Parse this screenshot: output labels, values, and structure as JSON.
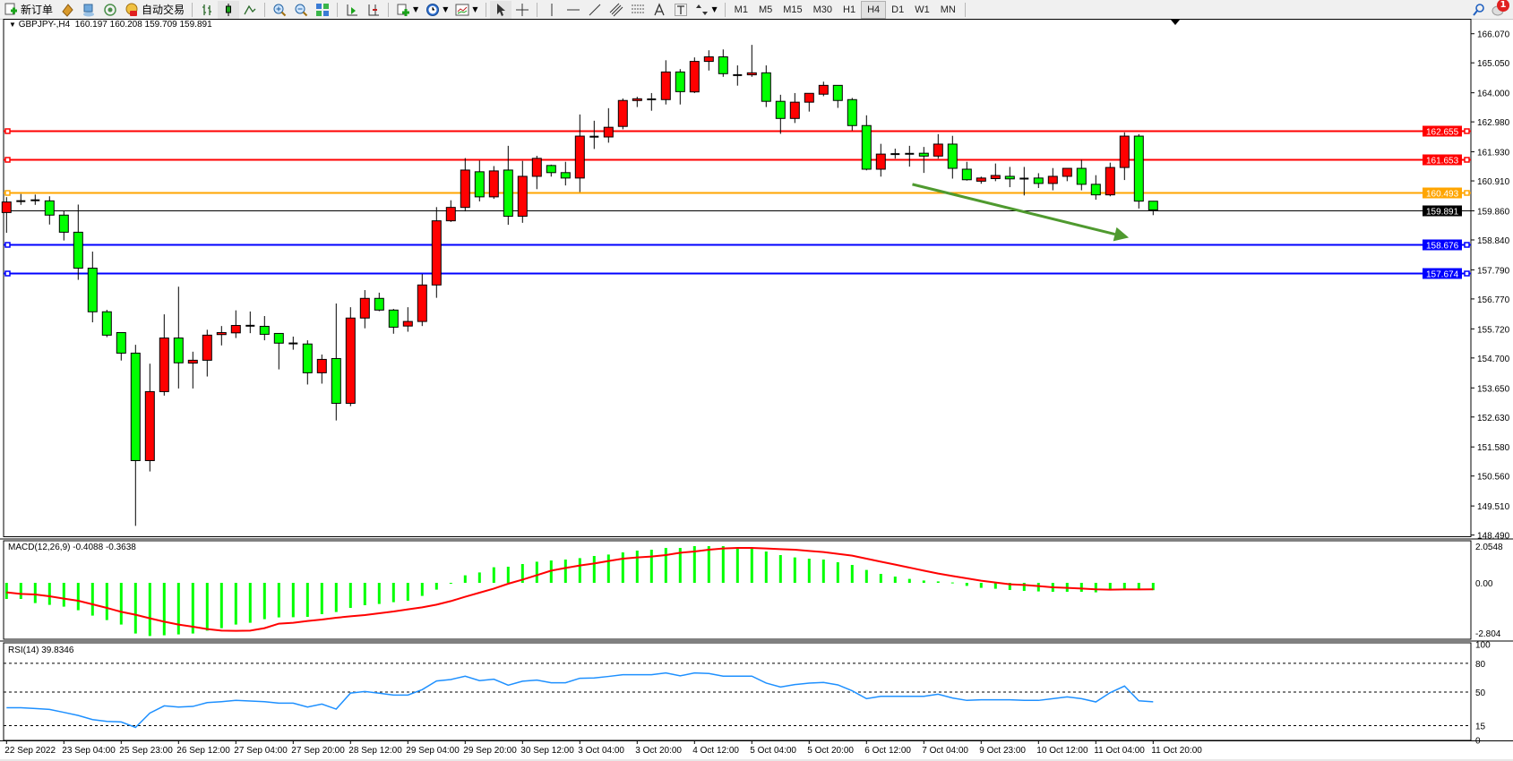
{
  "toolbar": {
    "new_order_label": "新订单",
    "auto_trading_label": "自动交易",
    "timeframes": [
      "M1",
      "M5",
      "M15",
      "M30",
      "H1",
      "H4",
      "D1",
      "W1",
      "MN"
    ],
    "active_timeframe": "H4",
    "notification_count": "1",
    "icons": [
      "new-order-icon",
      "market-watch-icon",
      "data-window-icon",
      "signals-icon",
      "auto-trading-icon",
      "bar-chart-icon",
      "candlestick-icon",
      "line-chart-icon",
      "zoom-in-icon",
      "zoom-out-icon",
      "tile-windows-icon",
      "auto-scroll-icon",
      "chart-shift-icon",
      "indicators-icon",
      "periods-clock-icon",
      "templates-icon",
      "cursor-icon",
      "crosshair-icon",
      "vertical-line-icon",
      "horizontal-line-icon",
      "trendline-icon",
      "equidistant-channel-icon",
      "fibonacci-icon",
      "text-icon",
      "text-label-icon",
      "arrows-icon",
      "search-icon",
      "notification-icon"
    ]
  },
  "header": {
    "symbol_label": "GBPJPY-,H4",
    "ohlc_label": "160.197 160.208 159.709 159.891"
  },
  "macd": {
    "label": "MACD(12,26,9) -0.4088 -0.3638"
  },
  "rsi": {
    "label": "RSI(14) 39.8346"
  },
  "colors": {
    "bull_candle": "#ff0000",
    "bear_candle": "#00ff00",
    "macd_histogram": "#00ff00",
    "macd_signal": "#ff0000",
    "rsi_line": "#1e90ff",
    "resistance": "#ff0000",
    "pivot": "#ffa500",
    "support": "#0000ff",
    "bid_line": "#000000",
    "arrow": "#4f9a2f"
  },
  "chart_data": [
    {
      "type": "candlestick",
      "symbol": "GBPJPY-",
      "timeframe": "H4",
      "ylim": [
        148.49,
        166.07
      ],
      "y_ticks": [
        "166.070",
        "165.050",
        "164.000",
        "162.980",
        "161.930",
        "160.910",
        "159.860",
        "158.840",
        "157.790",
        "156.770",
        "155.720",
        "154.700",
        "153.650",
        "152.630",
        "151.580",
        "150.560",
        "149.510",
        "148.490"
      ],
      "x_tick_labels": [
        "22 Sep 2022",
        "23 Sep 04:00",
        "25 Sep 23:00",
        "26 Sep 12:00",
        "27 Sep 04:00",
        "27 Sep 20:00",
        "28 Sep 12:00",
        "29 Sep 04:00",
        "29 Sep 20:00",
        "30 Sep 12:00",
        "3 Oct 04:00",
        "3 Oct 20:00",
        "4 Oct 12:00",
        "5 Oct 04:00",
        "5 Oct 20:00",
        "6 Oct 12:00",
        "7 Oct 04:00",
        "9 Oct 23:00",
        "10 Oct 12:00",
        "11 Oct 04:00",
        "11 Oct 20:00"
      ],
      "x_tick_every_bars": 4,
      "ohlc_fields": [
        "open",
        "high",
        "low",
        "close"
      ],
      "ohlc": [
        [
          159.8,
          160.34,
          159.09,
          160.17
        ],
        [
          160.2,
          160.45,
          160.07,
          160.2
        ],
        [
          160.23,
          160.43,
          160.07,
          160.23
        ],
        [
          160.21,
          160.37,
          159.38,
          159.71
        ],
        [
          159.71,
          159.87,
          158.82,
          159.11
        ],
        [
          159.11,
          160.08,
          157.44,
          157.85
        ],
        [
          157.85,
          158.43,
          155.95,
          156.32
        ],
        [
          156.32,
          156.39,
          155.43,
          155.5
        ],
        [
          155.59,
          155.59,
          154.61,
          154.87
        ],
        [
          154.87,
          155.16,
          148.81,
          151.1
        ],
        [
          151.1,
          154.5,
          150.72,
          153.52
        ],
        [
          153.52,
          156.23,
          153.38,
          155.4
        ],
        [
          155.4,
          157.2,
          153.63,
          154.53
        ],
        [
          154.52,
          154.92,
          153.63,
          154.62
        ],
        [
          154.62,
          155.69,
          154.05,
          155.5
        ],
        [
          155.52,
          155.82,
          155.14,
          155.59
        ],
        [
          155.58,
          156.37,
          155.4,
          155.84
        ],
        [
          155.83,
          156.33,
          155.57,
          155.83
        ],
        [
          155.81,
          156.17,
          155.32,
          155.53
        ],
        [
          155.56,
          155.56,
          154.3,
          155.22
        ],
        [
          155.21,
          155.45,
          154.99,
          155.21
        ],
        [
          155.19,
          155.32,
          153.77,
          154.18
        ],
        [
          154.18,
          154.82,
          153.8,
          154.65
        ],
        [
          154.68,
          156.61,
          152.51,
          153.11
        ],
        [
          153.11,
          156.48,
          153.01,
          156.1
        ],
        [
          156.1,
          157.08,
          155.74,
          156.79
        ],
        [
          156.79,
          156.99,
          156.34,
          156.38
        ],
        [
          156.38,
          156.42,
          155.55,
          155.78
        ],
        [
          155.82,
          156.48,
          155.62,
          155.98
        ],
        [
          155.98,
          157.64,
          155.82,
          157.26
        ],
        [
          157.26,
          159.99,
          156.81,
          159.51
        ],
        [
          159.51,
          160.23,
          159.47,
          159.98
        ],
        [
          159.98,
          161.71,
          159.84,
          161.29
        ],
        [
          161.23,
          161.62,
          160.19,
          160.35
        ],
        [
          160.35,
          161.43,
          160.28,
          161.26
        ],
        [
          161.29,
          162.14,
          159.37,
          159.67
        ],
        [
          159.67,
          161.61,
          159.44,
          161.07
        ],
        [
          161.07,
          161.79,
          160.62,
          161.7
        ],
        [
          161.45,
          161.48,
          161.06,
          161.2
        ],
        [
          161.2,
          161.58,
          160.75,
          161.01
        ],
        [
          161.01,
          163.24,
          160.52,
          162.48
        ],
        [
          162.46,
          163.02,
          162.03,
          162.46
        ],
        [
          162.45,
          163.46,
          162.25,
          162.79
        ],
        [
          162.82,
          163.8,
          162.72,
          163.73
        ],
        [
          163.73,
          163.86,
          163.5,
          163.79
        ],
        [
          163.77,
          163.99,
          163.37,
          163.77
        ],
        [
          163.76,
          165.14,
          163.59,
          164.73
        ],
        [
          164.73,
          164.83,
          163.59,
          164.04
        ],
        [
          164.03,
          165.24,
          163.99,
          165.1
        ],
        [
          165.1,
          165.49,
          164.78,
          165.26
        ],
        [
          165.26,
          165.52,
          164.56,
          164.67
        ],
        [
          164.62,
          164.96,
          164.25,
          164.62
        ],
        [
          164.63,
          165.68,
          164.56,
          164.7
        ],
        [
          164.7,
          164.96,
          163.5,
          163.7
        ],
        [
          163.7,
          163.93,
          162.56,
          163.1
        ],
        [
          163.1,
          163.99,
          162.94,
          163.67
        ],
        [
          163.67,
          163.98,
          163.34,
          163.98
        ],
        [
          163.95,
          164.39,
          163.88,
          164.26
        ],
        [
          164.26,
          164.26,
          163.47,
          163.73
        ],
        [
          163.76,
          163.82,
          162.68,
          162.85
        ],
        [
          162.85,
          163.21,
          161.28,
          161.32
        ],
        [
          161.32,
          162.21,
          161.06,
          161.85
        ],
        [
          161.85,
          162.04,
          161.69,
          161.85
        ],
        [
          161.86,
          162.14,
          161.41,
          161.86
        ],
        [
          161.88,
          162.1,
          161.19,
          161.78
        ],
        [
          161.78,
          162.55,
          161.69,
          162.2
        ],
        [
          162.2,
          162.49,
          160.99,
          161.35
        ],
        [
          161.32,
          161.58,
          160.92,
          160.95
        ],
        [
          160.9,
          161.06,
          160.81,
          161.01
        ],
        [
          160.99,
          161.52,
          160.9,
          161.1
        ],
        [
          161.07,
          161.4,
          160.69,
          160.98
        ],
        [
          160.99,
          161.4,
          160.4,
          160.99
        ],
        [
          161.01,
          161.18,
          160.66,
          160.82
        ],
        [
          160.82,
          161.36,
          160.58,
          161.07
        ],
        [
          161.07,
          161.35,
          160.9,
          161.35
        ],
        [
          161.35,
          161.65,
          160.58,
          160.79
        ],
        [
          160.79,
          161.11,
          160.25,
          160.42
        ],
        [
          160.42,
          161.55,
          160.37,
          161.38
        ],
        [
          161.38,
          162.61,
          160.94,
          162.48
        ],
        [
          162.48,
          162.55,
          159.94,
          160.2
        ],
        [
          160.197,
          160.208,
          159.709,
          159.891
        ]
      ],
      "horizontal_lines": [
        {
          "price": 162.655,
          "label": "162.655",
          "color": "#ff0000"
        },
        {
          "price": 161.653,
          "label": "161.653",
          "color": "#ff0000"
        },
        {
          "price": 160.493,
          "label": "160.493",
          "color": "#ffa500"
        },
        {
          "price": 159.891,
          "label": "159.891",
          "color": "#000000",
          "role": "bid"
        },
        {
          "price": 158.676,
          "label": "158.676",
          "color": "#0000ff"
        },
        {
          "price": 157.674,
          "label": "157.674",
          "color": "#0000ff"
        }
      ],
      "arrow_annotation": {
        "from": {
          "bar": 63.2,
          "price": 160.79
        },
        "to": {
          "bar": 78.3,
          "price": 158.92
        },
        "color": "#4f9a2f"
      }
    },
    {
      "type": "bar",
      "indicator": "MACD(12,26,9)",
      "y_ticks": [
        "2.0548",
        "0.00",
        "-2.804"
      ],
      "ylim": [
        -2.804,
        2.0548
      ],
      "histogram": [
        -0.9,
        -0.9,
        -1.13,
        -1.23,
        -1.33,
        -1.53,
        -1.83,
        -2.08,
        -2.33,
        -2.83,
        -2.97,
        -2.93,
        -2.88,
        -2.83,
        -2.67,
        -2.53,
        -2.33,
        -2.23,
        -2.03,
        -1.93,
        -1.92,
        -1.9,
        -1.75,
        -1.63,
        -1.4,
        -1.25,
        -1.18,
        -1.08,
        -1.0,
        -0.73,
        -0.38,
        -0.03,
        0.42,
        0.58,
        0.87,
        0.9,
        1.05,
        1.18,
        1.25,
        1.3,
        1.38,
        1.5,
        1.58,
        1.7,
        1.8,
        1.85,
        1.95,
        1.95,
        2.05,
        2.05,
        2.05,
        1.95,
        1.95,
        1.75,
        1.55,
        1.42,
        1.35,
        1.3,
        1.15,
        1.0,
        0.72,
        0.5,
        0.35,
        0.22,
        0.13,
        0.08,
        0.02,
        -0.17,
        -0.28,
        -0.33,
        -0.4,
        -0.45,
        -0.48,
        -0.5,
        -0.5,
        -0.5,
        -0.53,
        -0.42,
        -0.33,
        -0.33,
        -0.4088
      ],
      "signal": [
        -0.53,
        -0.62,
        -0.65,
        -0.75,
        -0.88,
        -1.0,
        -1.2,
        -1.4,
        -1.62,
        -1.78,
        -1.98,
        -2.17,
        -2.33,
        -2.45,
        -2.58,
        -2.67,
        -2.68,
        -2.67,
        -2.53,
        -2.28,
        -2.23,
        -2.13,
        -2.05,
        -1.95,
        -1.87,
        -1.8,
        -1.7,
        -1.6,
        -1.48,
        -1.37,
        -1.22,
        -1.02,
        -0.78,
        -0.55,
        -0.32,
        -0.05,
        0.18,
        0.43,
        0.68,
        0.83,
        0.97,
        1.08,
        1.22,
        1.35,
        1.42,
        1.47,
        1.55,
        1.68,
        1.75,
        1.85,
        1.92,
        1.95,
        1.95,
        1.92,
        1.88,
        1.85,
        1.78,
        1.72,
        1.62,
        1.52,
        1.35,
        1.18,
        1.02,
        0.85,
        0.68,
        0.52,
        0.38,
        0.25,
        0.12,
        0.02,
        -0.08,
        -0.12,
        -0.18,
        -0.25,
        -0.28,
        -0.32,
        -0.36,
        -0.38,
        -0.37,
        -0.37,
        -0.3638
      ]
    },
    {
      "type": "line",
      "indicator": "RSI(14)",
      "y_ticks": [
        "100",
        "80",
        "50",
        "15",
        "0"
      ],
      "levels": [
        80,
        50,
        15
      ],
      "ylim": [
        0,
        100
      ],
      "values": [
        33.7,
        33.7,
        32.8,
        31.9,
        28.8,
        25.6,
        21.3,
        19.4,
        18.8,
        13.1,
        28.1,
        35.6,
        34.4,
        35.0,
        39.0,
        40.0,
        41.3,
        40.6,
        40.0,
        38.4,
        38.4,
        34.4,
        37.5,
        32.2,
        49.0,
        50.6,
        48.8,
        46.9,
        46.9,
        52.5,
        61.6,
        63.1,
        66.6,
        61.9,
        63.4,
        57.2,
        61.3,
        62.5,
        59.7,
        59.7,
        64.4,
        64.7,
        66.3,
        68.1,
        68.1,
        68.1,
        70.0,
        66.9,
        70.0,
        69.4,
        66.6,
        66.6,
        66.6,
        59.4,
        55.3,
        57.8,
        59.4,
        60.0,
        57.5,
        51.3,
        43.1,
        45.6,
        45.6,
        45.6,
        45.6,
        47.8,
        43.8,
        41.3,
        41.9,
        41.9,
        41.9,
        41.3,
        41.3,
        43.1,
        45.0,
        43.1,
        39.7,
        49.4,
        56.3,
        40.9,
        39.8346
      ]
    }
  ]
}
